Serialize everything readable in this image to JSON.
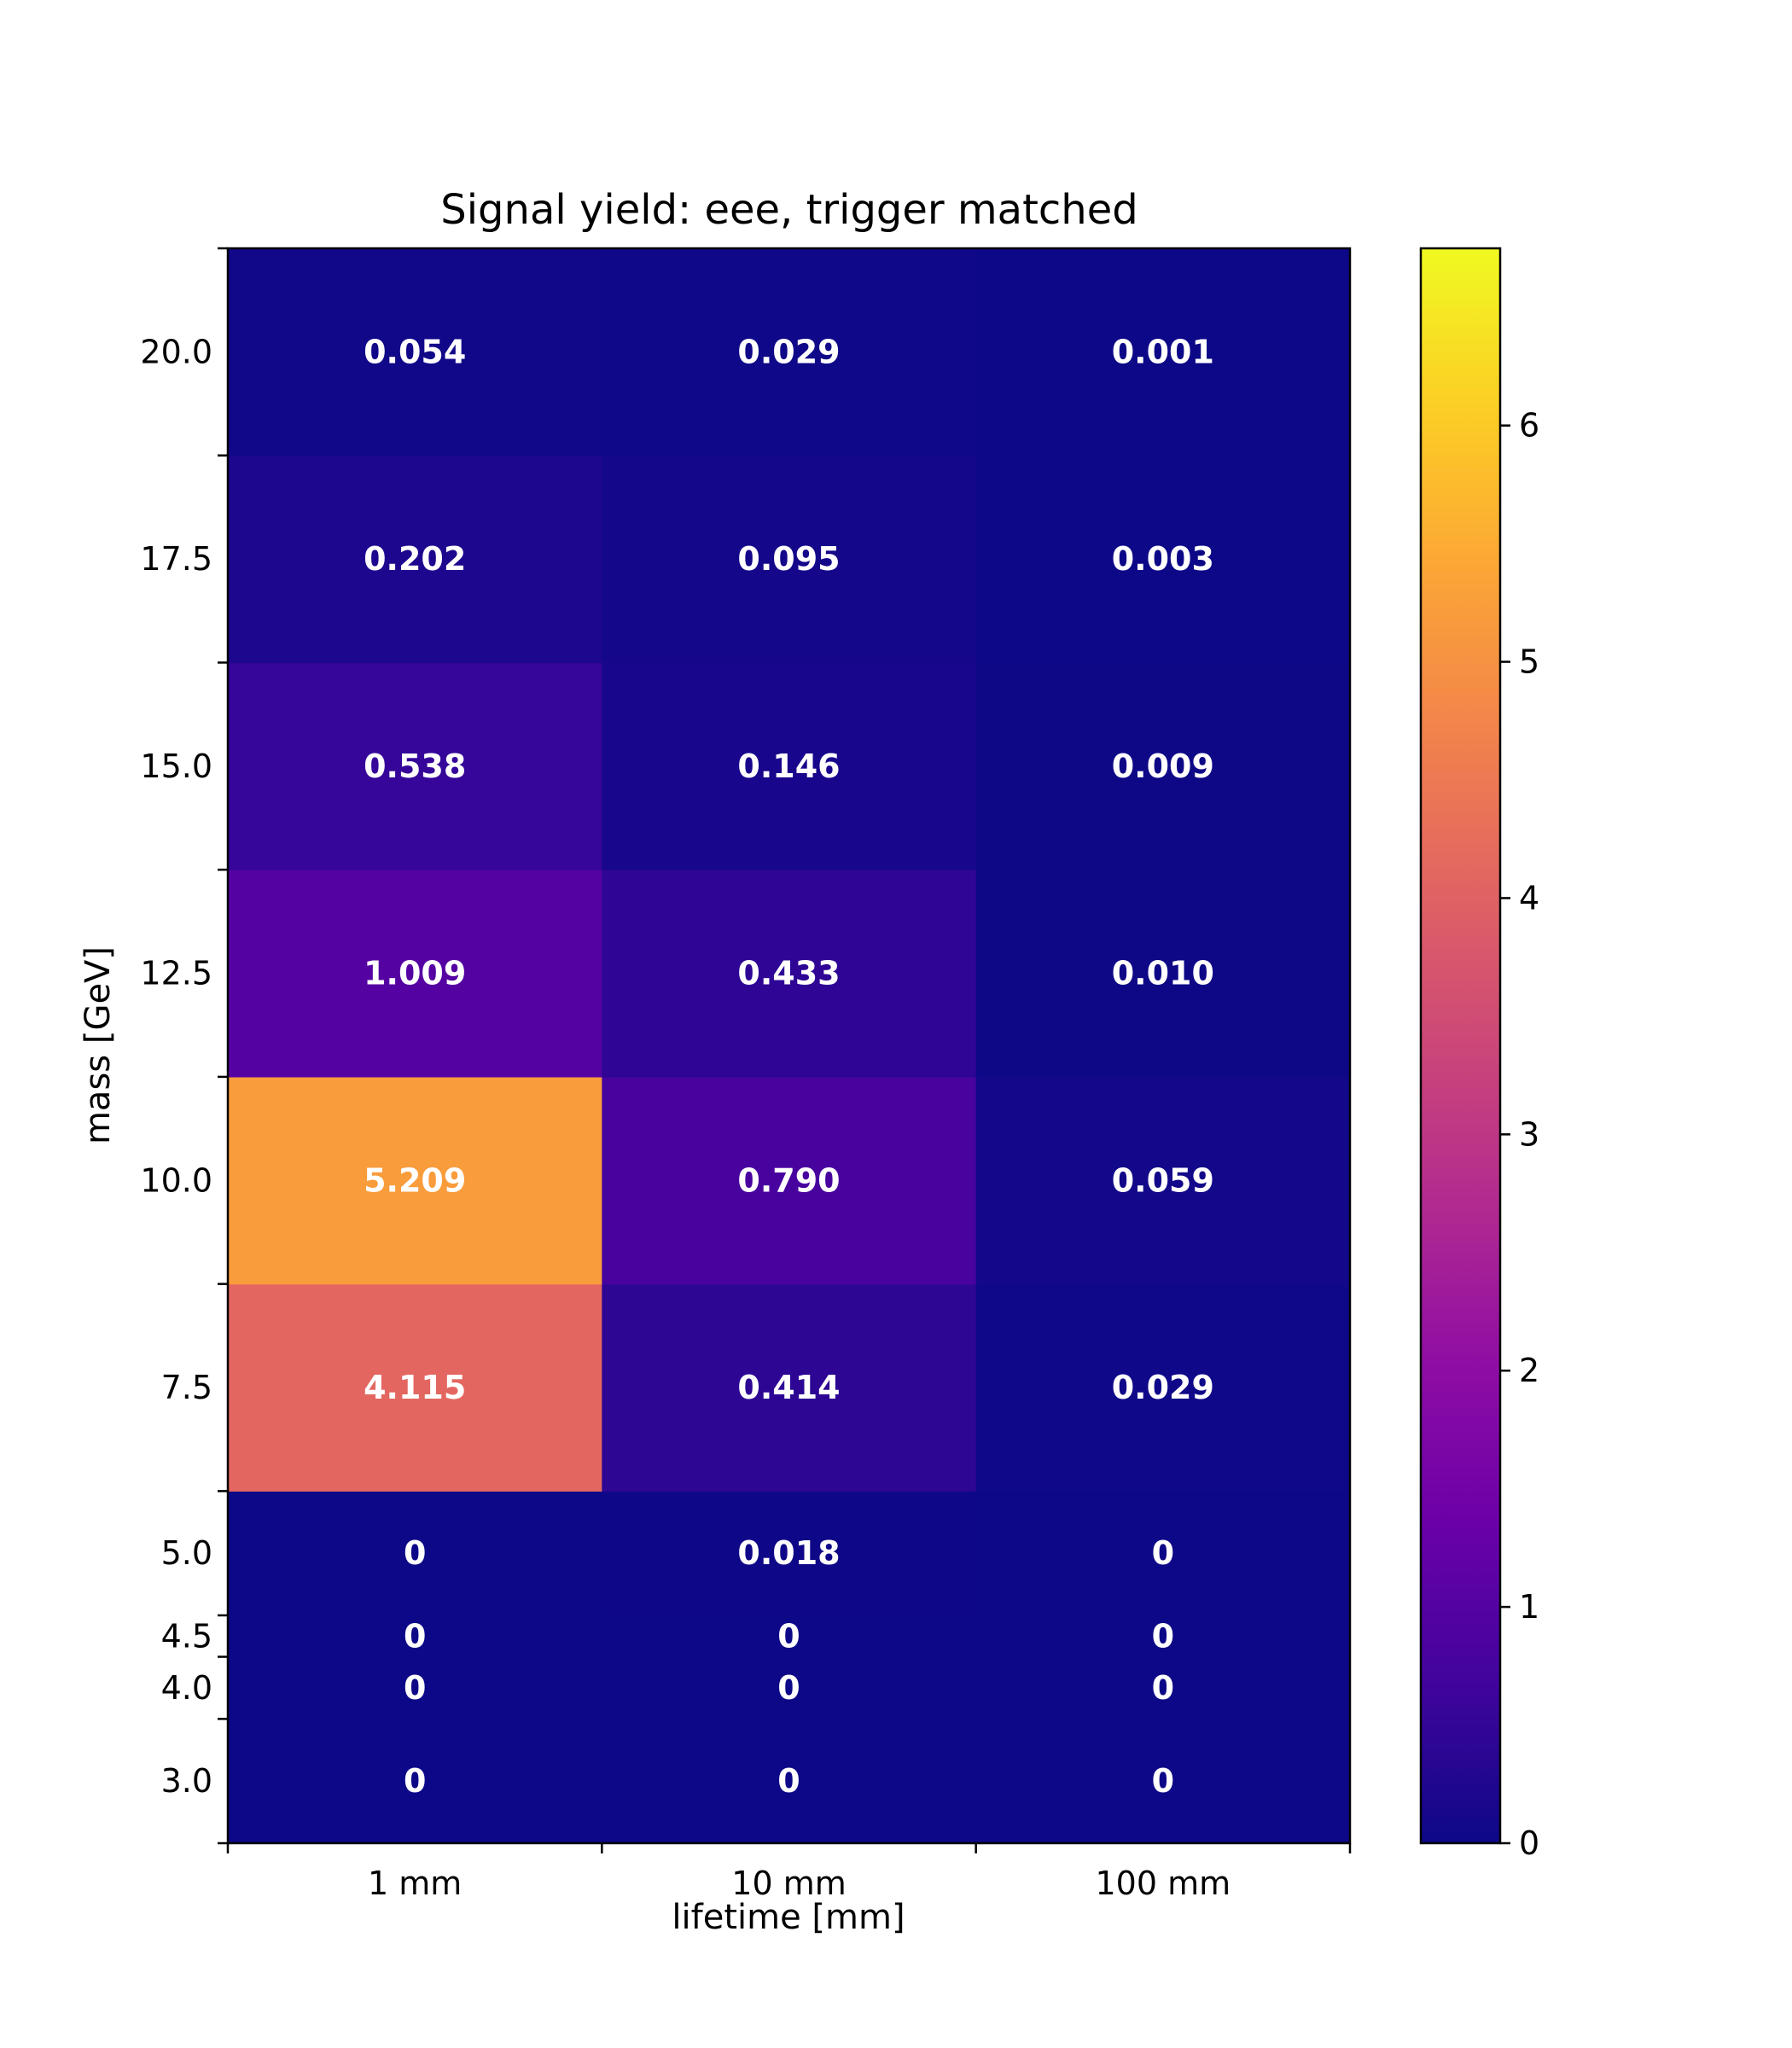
{
  "chart_data": {
    "type": "heatmap",
    "title": "Signal yield: eee, trigger matched",
    "xlabel": "lifetime [mm]",
    "ylabel": "mass [GeV]",
    "x_categories": [
      "1 mm",
      "10 mm",
      "100 mm"
    ],
    "y_bin_edges": [
      2.0,
      3.5,
      4.25,
      4.75,
      6.25,
      8.75,
      11.25,
      13.75,
      16.25,
      18.75,
      21.25
    ],
    "y_categories": [
      "3.0",
      "4.0",
      "4.5",
      "5.0",
      "7.5",
      "10.0",
      "12.5",
      "15.0",
      "17.5",
      "20.0"
    ],
    "values": [
      [
        0,
        0,
        0
      ],
      [
        0,
        0,
        0
      ],
      [
        0,
        0,
        0
      ],
      [
        0,
        0.018,
        0
      ],
      [
        4.115,
        0.414,
        0.029
      ],
      [
        5.209,
        0.79,
        0.059
      ],
      [
        1.009,
        0.433,
        0.01
      ],
      [
        0.538,
        0.146,
        0.009
      ],
      [
        0.202,
        0.095,
        0.003
      ],
      [
        0.054,
        0.029,
        0.001
      ]
    ],
    "labels": [
      [
        "0",
        "0",
        "0"
      ],
      [
        "0",
        "0",
        "0"
      ],
      [
        "0",
        "0",
        "0"
      ],
      [
        "0",
        "0.018",
        "0"
      ],
      [
        "4.115",
        "0.414",
        "0.029"
      ],
      [
        "5.209",
        "0.790",
        "0.059"
      ],
      [
        "1.009",
        "0.433",
        "0.010"
      ],
      [
        "0.538",
        "0.146",
        "0.009"
      ],
      [
        "0.202",
        "0.095",
        "0.003"
      ],
      [
        "0.054",
        "0.029",
        "0.001"
      ]
    ],
    "colorbar": {
      "colormap": "plasma",
      "vmin": 0,
      "vmax": 6.75,
      "ticks": [
        "0",
        "1",
        "2",
        "3",
        "4",
        "5",
        "6"
      ]
    },
    "grid": false
  }
}
